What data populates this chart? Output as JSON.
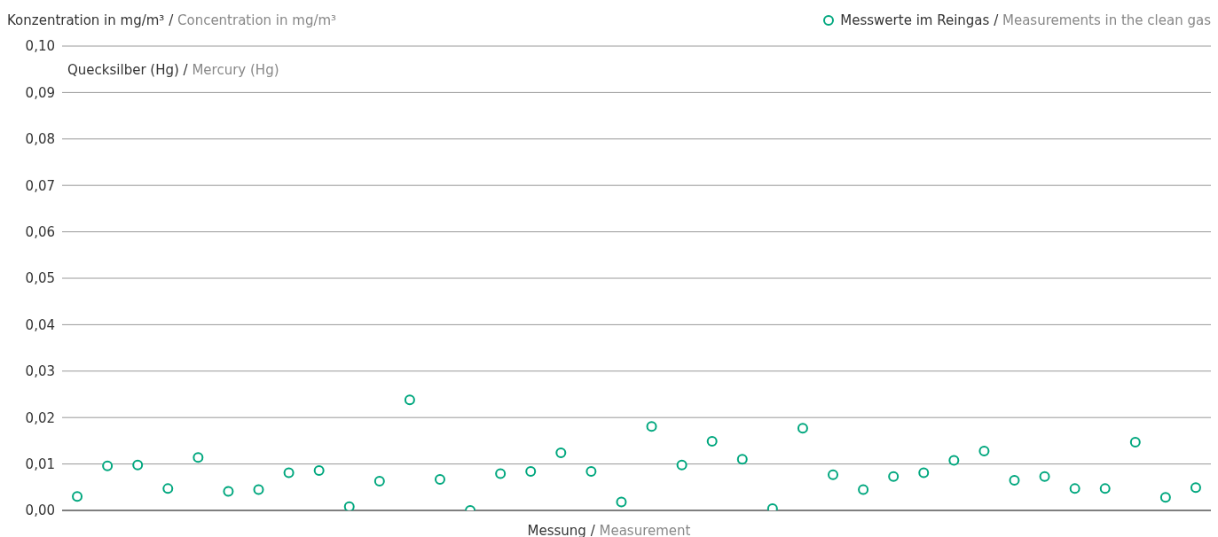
{
  "chart_data": {
    "type": "scatter",
    "ylabel": "Konzentration in mg/m³ / Concentration in mg/m³",
    "xlabel": "Messung / Measurement",
    "annotations": [
      "Quecksilber (Hg) / Mercury (Hg)"
    ],
    "categories": [
      null,
      null,
      null,
      null,
      null,
      null,
      null,
      null,
      null,
      null,
      null,
      null,
      null,
      null,
      null,
      null,
      null,
      null,
      null,
      null,
      null,
      null,
      null,
      null,
      null,
      null,
      null,
      null,
      null,
      null,
      null,
      null,
      null,
      null,
      null,
      null,
      null,
      null
    ],
    "series": [
      {
        "name": "Messwerte im Reingas / Measurements in the clean gas",
        "color": "#00a77e",
        "values": [
          0.003,
          0.0096,
          0.0098,
          0.0047,
          0.0114,
          0.0041,
          0.0045,
          0.0081,
          0.0086,
          0.0008,
          0.0063,
          0.0238,
          0.0067,
          0.0,
          0.0079,
          0.0084,
          0.0124,
          0.0084,
          0.0018,
          0.0181,
          0.0098,
          0.0149,
          0.011,
          0.0004,
          0.0177,
          0.0077,
          0.0045,
          0.0073,
          0.0081,
          0.0108,
          0.0128,
          0.0065,
          0.0073,
          0.0047,
          0.0047,
          0.0147,
          0.0028,
          0.0049
        ]
      }
    ],
    "ylim": [
      0,
      0.1
    ],
    "yticks": [
      {
        "value": 0,
        "label": "0,00"
      },
      {
        "value": 0.01,
        "label": "0,01"
      },
      {
        "value": 0.02,
        "label": "0,02"
      },
      {
        "value": 0.03,
        "label": "0,03"
      },
      {
        "value": 0.04,
        "label": "0,04"
      },
      {
        "value": 0.05,
        "label": "0,05"
      },
      {
        "value": 0.06,
        "label": "0,06"
      },
      {
        "value": 0.07,
        "label": "0,07"
      },
      {
        "value": 0.08,
        "label": "0,08"
      },
      {
        "value": 0.09,
        "label": "0,09"
      },
      {
        "value": 0.1,
        "label": "0,10"
      }
    ],
    "grid": "y",
    "legend": "top right",
    "marker": "circle",
    "tick_labels": "y"
  }
}
